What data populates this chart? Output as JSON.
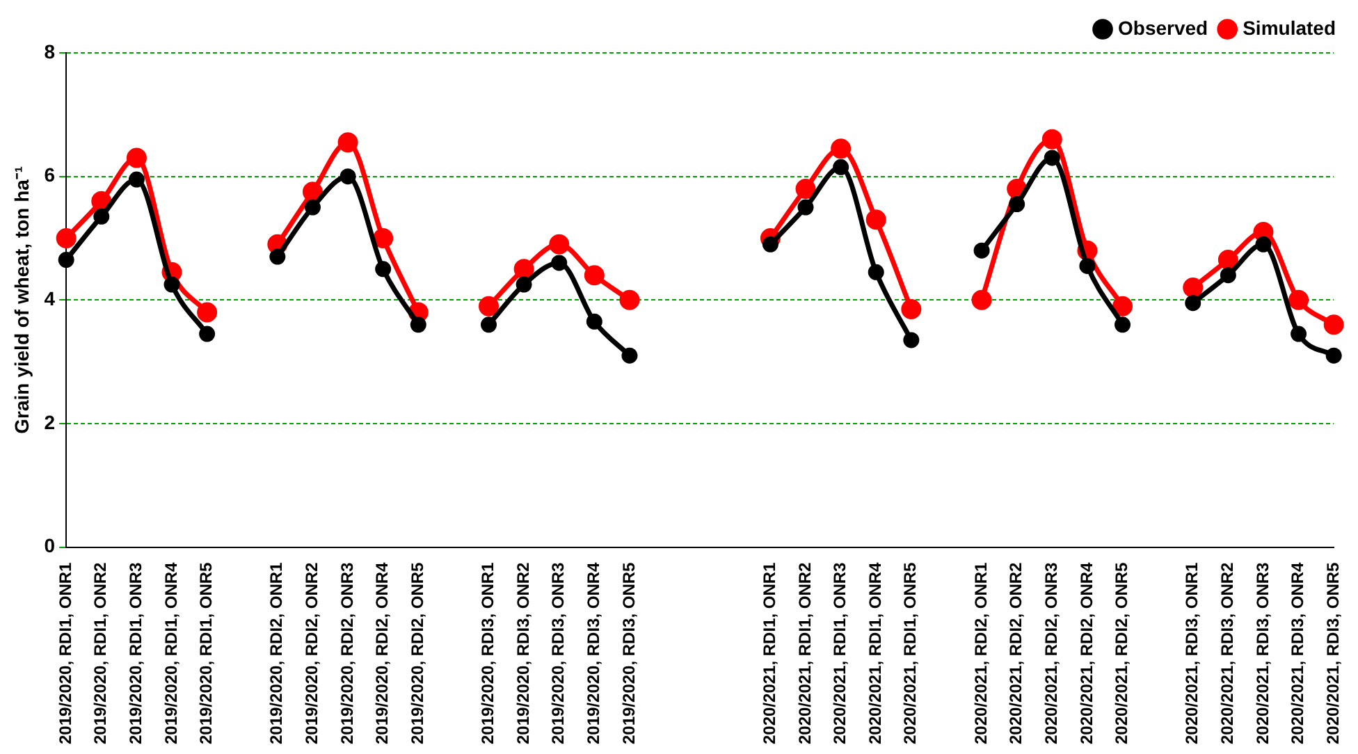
{
  "chart_data": {
    "type": "line",
    "ylabel": "Grain yield of wheat, ton ha⁻¹",
    "categories": [
      "2019/2020, RDI1, ONR1",
      "2019/2020, RDI1, ONR2",
      "2019/2020, RDI1, ONR3",
      "2019/2020, RDI1, ONR4",
      "2019/2020, RDI1, ONR5",
      null,
      "2019/2020, RDI2, ONR1",
      "2019/2020, RDI2, ONR2",
      "2019/2020, RDI2, ONR3",
      "2019/2020, RDI2, ONR4",
      "2019/2020, RDI2, ONR5",
      null,
      "2019/2020, RDI3, ONR1",
      "2019/2020, RDI3, ONR2",
      "2019/2020, RDI3, ONR3",
      "2019/2020, RDI3, ONR4",
      "2019/2020, RDI3, ONR5",
      null,
      null,
      null,
      "2020/2021, RDI1, ONR1",
      "2020/2021, RDI1, ONR2",
      "2020/2021, RDI1, ONR3",
      "2020/2021, RDI1, ONR4",
      "2020/2021, RDI1, ONR5",
      null,
      "2020/2021, RDI2, ONR1",
      "2020/2021, RDI2, ONR2",
      "2020/2021, RDI2, ONR3",
      "2020/2021, RDI2, ONR4",
      "2020/2021, RDI2, ONR5",
      null,
      "2020/2021, RDI3, ONR1",
      "2020/2021, RDI3, ONR2",
      "2020/2021, RDI3, ONR3",
      "2020/2021, RDI3, ONR4",
      "2020/2021, RDI3, ONR5"
    ],
    "series": [
      {
        "name": "Observed",
        "color": "#000000",
        "values": [
          4.65,
          5.35,
          5.95,
          4.25,
          3.45,
          null,
          4.7,
          5.5,
          6.0,
          4.5,
          3.6,
          null,
          3.6,
          4.25,
          4.6,
          3.65,
          3.1,
          null,
          null,
          null,
          4.9,
          5.5,
          6.15,
          4.45,
          3.35,
          null,
          4.8,
          5.55,
          6.3,
          4.55,
          3.6,
          null,
          3.95,
          4.4,
          4.9,
          3.45,
          3.1
        ]
      },
      {
        "name": "Simulated",
        "color": "#ff0000",
        "values": [
          5.0,
          5.6,
          6.3,
          4.45,
          3.8,
          null,
          4.9,
          5.75,
          6.55,
          5.0,
          3.8,
          null,
          3.9,
          4.5,
          4.9,
          4.4,
          4.0,
          null,
          null,
          null,
          5.0,
          5.8,
          6.45,
          5.3,
          3.85,
          null,
          4.0,
          5.8,
          6.6,
          4.8,
          3.9,
          null,
          4.2,
          4.65,
          5.1,
          4.0,
          3.6
        ]
      }
    ],
    "ylim": [
      0,
      8
    ],
    "yticks": [
      0,
      2,
      4,
      6,
      8
    ],
    "grid": "y",
    "legend": "top right",
    "marker": "circle",
    "line_style": "solid"
  }
}
